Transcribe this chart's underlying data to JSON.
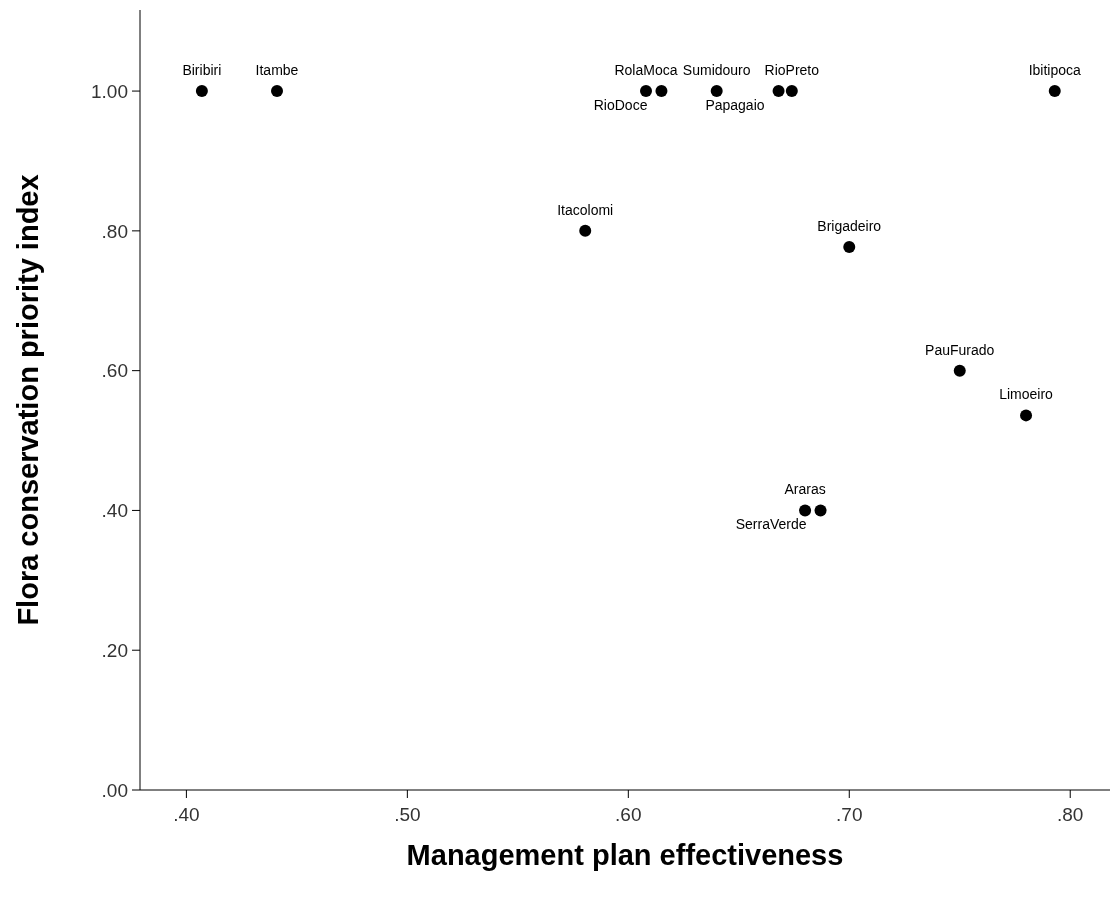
{
  "chart_data": {
    "type": "scatter",
    "xlabel": "Management plan effectiveness",
    "ylabel": "Flora conservation priority index",
    "x": [
      0.407,
      0.441,
      0.5805,
      0.608,
      0.615,
      0.64,
      0.668,
      0.674,
      0.7,
      0.68,
      0.687,
      0.75,
      0.78,
      0.793
    ],
    "values": [
      1.0,
      1.0,
      0.8,
      1.0,
      1.0,
      1.0,
      1.0,
      1.0,
      0.777,
      0.4,
      0.4,
      0.6,
      0.536,
      1.0
    ],
    "color": "#000000",
    "marker": "circle",
    "xlim": [
      0.379,
      0.818
    ],
    "xticks": [
      {
        "value": 0.4,
        "label": ".40"
      },
      {
        "value": 0.5,
        "label": ".50"
      },
      {
        "value": 0.6,
        "label": ".60"
      },
      {
        "value": 0.7,
        "label": ".70"
      },
      {
        "value": 0.8,
        "label": ".80"
      }
    ],
    "ylim": [
      0,
      1.116
    ],
    "yticks": [
      {
        "value": 0,
        "label": ".00"
      },
      {
        "value": 0.2,
        "label": ".20"
      },
      {
        "value": 0.4,
        "label": ".40"
      },
      {
        "value": 0.6,
        "label": ".60"
      },
      {
        "value": 0.8,
        "label": ".80"
      },
      {
        "value": 1.0,
        "label": "1.00"
      }
    ],
    "annotations": [
      {
        "text": "Biribiri",
        "x": 0.407,
        "y": 1.0
      },
      {
        "text": "Itambe",
        "x": 0.441,
        "y": 1.0
      },
      {
        "text": "Itacolomi",
        "x": 0.5805,
        "y": 0.8
      },
      {
        "text": "RolaMoca",
        "x": 0.608,
        "y": 1.0
      },
      {
        "text": "RioDoce",
        "x": 0.615,
        "y": 1.0
      },
      {
        "text": "Sumidouro",
        "x": 0.64,
        "y": 1.0
      },
      {
        "text": "Papagaio",
        "x": 0.668,
        "y": 1.0
      },
      {
        "text": "RioPreto",
        "x": 0.674,
        "y": 1.0
      },
      {
        "text": "Brigadeiro",
        "x": 0.7,
        "y": 0.777
      },
      {
        "text": "Araras",
        "x": 0.68,
        "y": 0.4
      },
      {
        "text": "SerraVerde",
        "x": 0.687,
        "y": 0.4
      },
      {
        "text": "PauFurado",
        "x": 0.75,
        "y": 0.6
      },
      {
        "text": "Limoeiro",
        "x": 0.78,
        "y": 0.536
      },
      {
        "text": "Ibitipoca",
        "x": 0.793,
        "y": 1.0
      }
    ]
  }
}
